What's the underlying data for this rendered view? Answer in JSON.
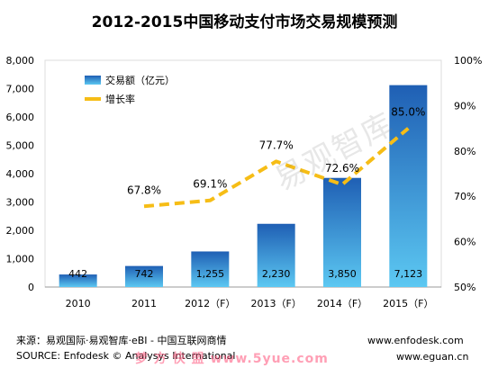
{
  "title": "2012-2015中国移动支付市场交易规模预测",
  "watermark": "易观智库",
  "chart_data": {
    "type": "bar",
    "categories": [
      "2010",
      "2011",
      "2012（F）",
      "2013（F）",
      "2014（F）",
      "2015（F）"
    ],
    "series": [
      {
        "name": "交易额（亿元）",
        "type": "bar",
        "axis": "left",
        "values": [
          442,
          742,
          1255,
          2230,
          3850,
          7123
        ],
        "labels": [
          "442",
          "742",
          "1,255",
          "2,230",
          "3,850",
          "7,123"
        ]
      },
      {
        "name": "增长率",
        "type": "line",
        "style": "dashed",
        "axis": "right",
        "values": [
          null,
          67.8,
          69.1,
          77.7,
          72.6,
          85.0
        ],
        "labels": [
          "",
          "67.8%",
          "69.1%",
          "77.7%",
          "72.6%",
          "85.0%"
        ]
      }
    ],
    "ylim_left": [
      0,
      8000
    ],
    "ylim_right": [
      50,
      100
    ],
    "yticks_left": [
      "0",
      "1,000",
      "2,000",
      "3,000",
      "4,000",
      "5,000",
      "6,000",
      "7,000",
      "8,000"
    ],
    "yticks_right": [
      "50%",
      "60%",
      "70%",
      "80%",
      "90%",
      "100%"
    ],
    "legend_position": "top-left",
    "grid": false,
    "colors": {
      "bar_top": "#1f5fb4",
      "bar_bottom": "#5cc8f2",
      "line": "#f6bd16",
      "plot_bg": "#ffffff"
    }
  },
  "footer": {
    "source_cn": "来源：易观国际·易观智库·eBI - 中国互联网商情",
    "source_en": "SOURCE: Enfodesk © Analysys International",
    "url1": "www.enfodesk.com",
    "url2": "www.eguan.cn",
    "site_mark": "梦 方 快 盟   www.5yue.com"
  }
}
